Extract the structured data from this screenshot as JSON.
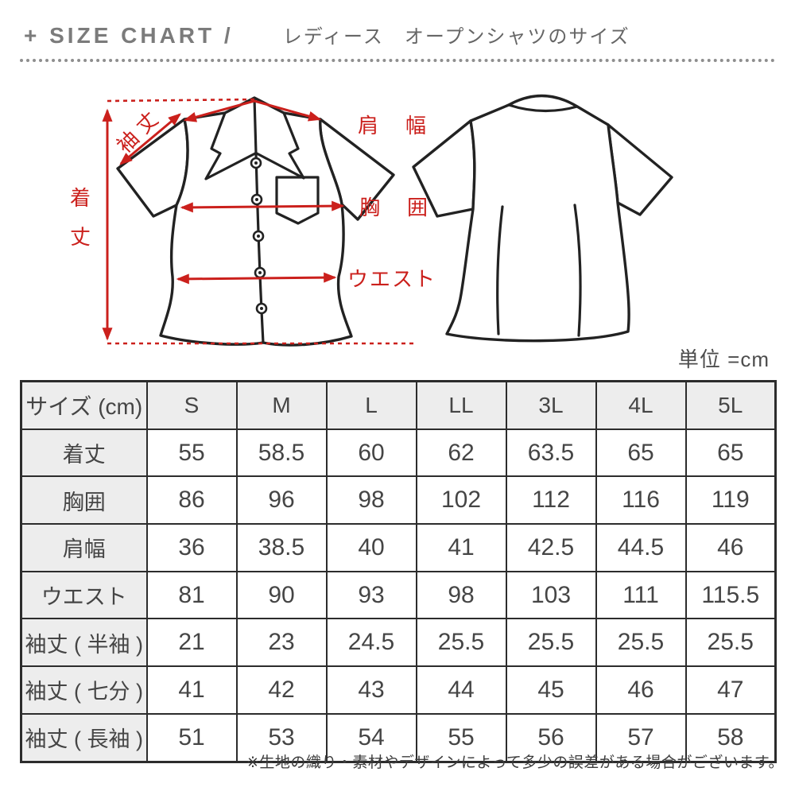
{
  "header": {
    "title_en": "+ SIZE CHART /",
    "title_ja": "レディース　オープンシャツのサイズ"
  },
  "diagram": {
    "labels": {
      "shoulder": "肩　幅",
      "chest": "胸　囲",
      "waist": "ウエスト",
      "sleeve": "袖丈",
      "length_top": "着",
      "length_bottom": "丈"
    },
    "unit_label": "単位 =cm"
  },
  "table": {
    "header_row": [
      "サイズ (cm)",
      "S",
      "M",
      "L",
      "LL",
      "3L",
      "4L",
      "5L"
    ],
    "rows": [
      {
        "label": "着丈",
        "values": [
          "55",
          "58.5",
          "60",
          "62",
          "63.5",
          "65",
          "65"
        ]
      },
      {
        "label": "胸囲",
        "values": [
          "86",
          "96",
          "98",
          "102",
          "112",
          "116",
          "119"
        ]
      },
      {
        "label": "肩幅",
        "values": [
          "36",
          "38.5",
          "40",
          "41",
          "42.5",
          "44.5",
          "46"
        ]
      },
      {
        "label": "ウエスト",
        "values": [
          "81",
          "90",
          "93",
          "98",
          "103",
          "111",
          "115.5"
        ]
      },
      {
        "label": "袖丈 ( 半袖 )",
        "values": [
          "21",
          "23",
          "24.5",
          "25.5",
          "25.5",
          "25.5",
          "25.5"
        ]
      },
      {
        "label": "袖丈 ( 七分 )",
        "values": [
          "41",
          "42",
          "43",
          "44",
          "45",
          "46",
          "47"
        ]
      },
      {
        "label": "袖丈 ( 長袖 )",
        "values": [
          "51",
          "53",
          "54",
          "55",
          "56",
          "57",
          "58"
        ]
      }
    ]
  },
  "footnote": "※生地の織り・素材やデザインによって多少の誤差がある場合がございます。",
  "colors": {
    "accent_red": "#cb201c",
    "outline_black": "#222222",
    "table_header_bg": "#ededed",
    "text_gray": "#555555"
  }
}
